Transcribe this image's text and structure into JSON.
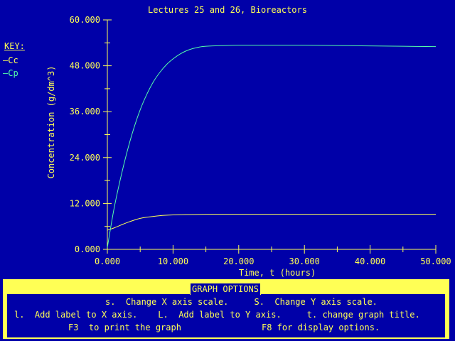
{
  "chart_data": {
    "type": "line",
    "title": "Lectures 25 and 26, Bioreactors",
    "xlabel": "Time, t (hours)",
    "ylabel": "Concentration (g/dm^3)",
    "xlim": [
      0,
      50
    ],
    "ylim": [
      0,
      60
    ],
    "x_ticks": [
      "0.000",
      "10.000",
      "20.000",
      "30.000",
      "40.000",
      "50.000"
    ],
    "y_ticks": [
      "0.000",
      "12.000",
      "24.000",
      "36.000",
      "48.000",
      "60.000"
    ],
    "legend_title": "KEY:",
    "legend_placement": "left",
    "series": [
      {
        "name": "Cc",
        "color": "#ffff55",
        "x": [
          0,
          1,
          2,
          3,
          4,
          5,
          6,
          8,
          10,
          12,
          14,
          16,
          18,
          20,
          25,
          30,
          40,
          50
        ],
        "values": [
          5.0,
          5.6,
          6.3,
          7.0,
          7.6,
          8.1,
          8.4,
          8.8,
          9.0,
          9.1,
          9.15,
          9.2,
          9.2,
          9.2,
          9.2,
          9.2,
          9.2,
          9.2
        ]
      },
      {
        "name": "Cp",
        "color": "#55ffaa",
        "x": [
          0,
          1,
          2,
          3,
          4,
          5,
          6,
          7,
          8,
          9,
          10,
          11,
          12,
          13,
          14,
          15,
          16,
          18,
          20,
          25,
          30,
          35,
          40,
          45,
          50
        ],
        "values": [
          0.5,
          10.5,
          18.5,
          25.5,
          31.5,
          36.5,
          40.5,
          43.8,
          46.3,
          48.3,
          49.8,
          51.0,
          51.9,
          52.5,
          52.9,
          53.1,
          53.2,
          53.3,
          53.4,
          53.4,
          53.4,
          53.3,
          53.2,
          53.1,
          53.0
        ]
      }
    ]
  },
  "menu": {
    "title": "GRAPH OPTIONS",
    "line1": "s.  Change X axis scale.     S.  Change Y axis scale.",
    "line2": "l.  Add label to X axis.    L.  Add label to Y axis.     t. change graph title.",
    "line3a": "F3  to print the graph",
    "line3b": "F8 for display options."
  }
}
